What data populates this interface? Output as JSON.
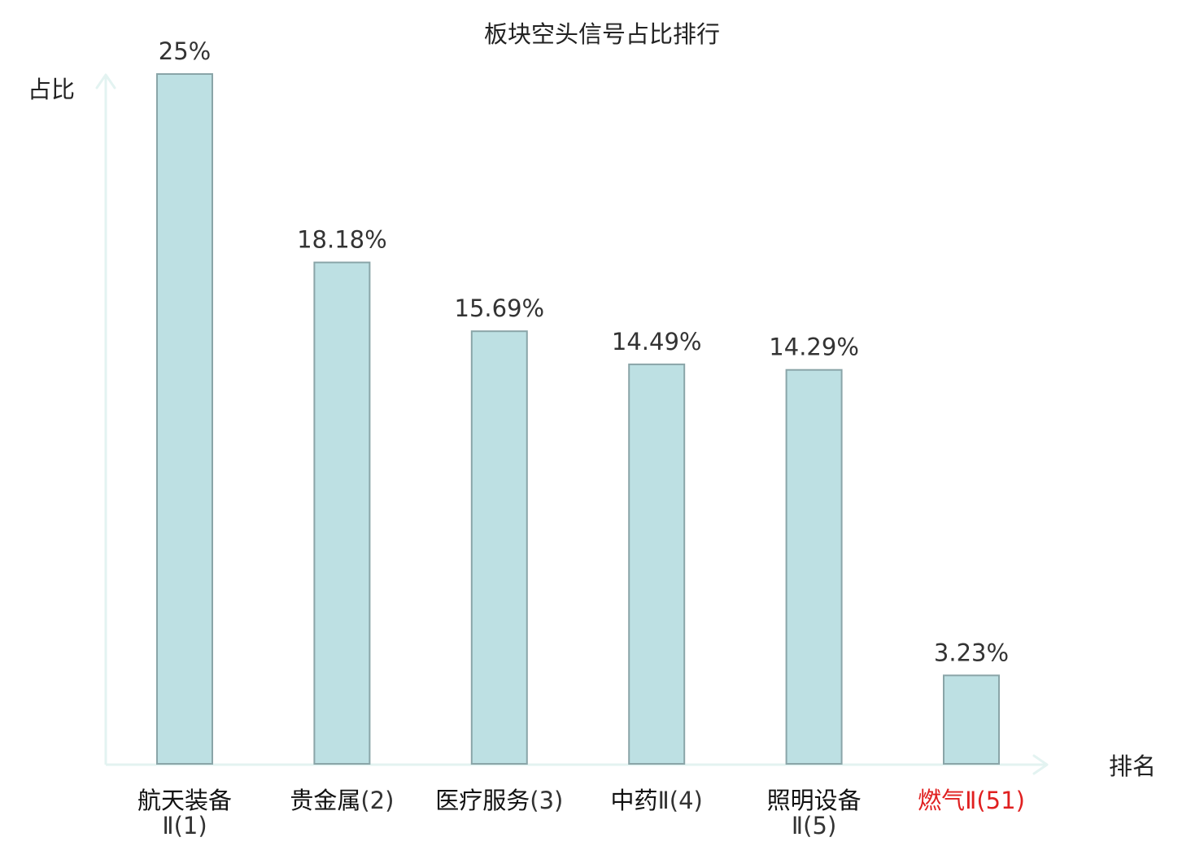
{
  "chart_data": {
    "type": "bar",
    "title": "板块空头信号占比排行",
    "ylabel": "占比",
    "xlabel": "排名",
    "categories": [
      {
        "name": "航天装备",
        "rank": "Ⅱ(1)",
        "wrap": true,
        "highlight": false
      },
      {
        "name": "贵金属",
        "rank": "(2)",
        "wrap": false,
        "highlight": false
      },
      {
        "name": "医疗服务",
        "rank": "(3)",
        "wrap": false,
        "highlight": false
      },
      {
        "name": "中药",
        "rank": "Ⅱ(4)",
        "wrap": false,
        "highlight": false
      },
      {
        "name": "照明设备",
        "rank": "Ⅱ(5)",
        "wrap": true,
        "highlight": false
      },
      {
        "name": "燃气",
        "rank": "Ⅱ(51)",
        "wrap": false,
        "highlight": true
      }
    ],
    "values": [
      25,
      18.18,
      15.69,
      14.49,
      14.29,
      3.23
    ],
    "value_labels": [
      "25%",
      "18.18%",
      "15.69%",
      "14.49%",
      "14.29%",
      "3.23%"
    ],
    "ylim": [
      0,
      25
    ],
    "grid": false,
    "colors": {
      "bar_fill": "#bde0e3",
      "bar_stroke": "#8aa5a8",
      "axis": "#e3f3f1",
      "highlight": "#e02020"
    }
  }
}
